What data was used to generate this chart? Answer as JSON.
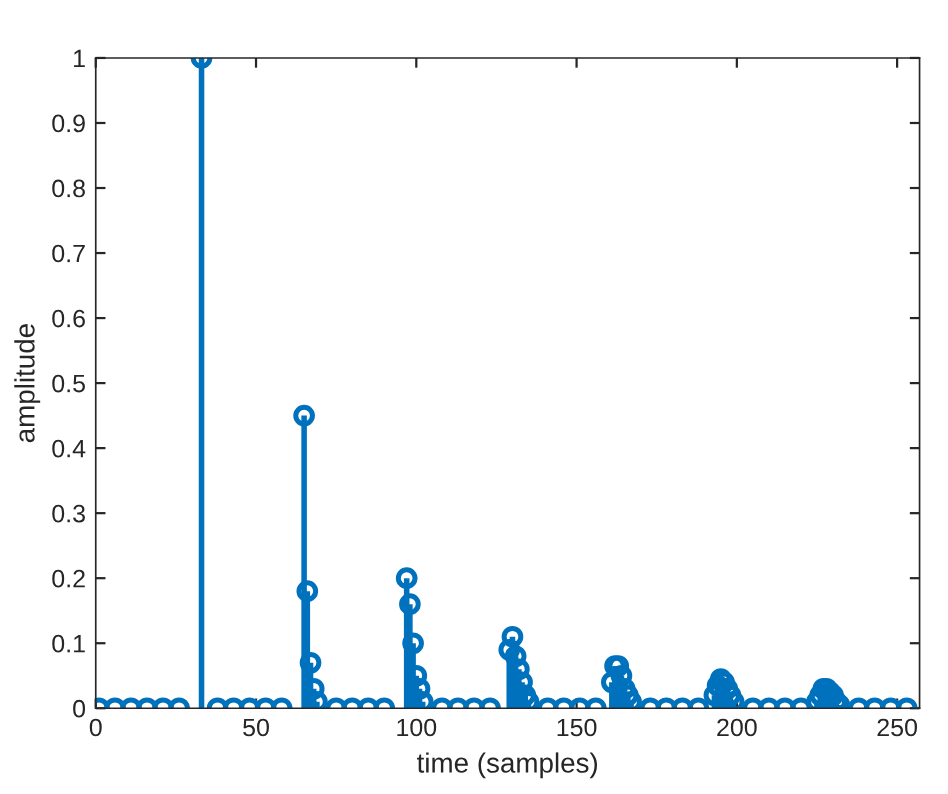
{
  "chart_data": {
    "type": "lollipop",
    "xlabel": "time (samples)",
    "ylabel": "amplitude",
    "color": "#0072bd",
    "marker": "circle",
    "x": [
      1,
      6,
      11,
      16,
      21,
      26,
      33,
      38,
      43,
      48,
      53,
      58,
      65,
      66,
      67,
      68,
      69,
      75,
      80,
      85,
      90,
      97,
      98,
      99,
      100,
      101,
      102,
      108,
      113,
      118,
      123,
      129,
      130,
      131,
      132,
      133,
      134,
      135,
      141,
      146,
      151,
      156,
      161,
      162,
      163,
      164,
      165,
      166,
      167,
      173,
      178,
      183,
      188,
      193,
      194,
      195,
      196,
      197,
      198,
      199,
      205,
      210,
      215,
      220,
      225,
      226,
      227,
      228,
      229,
      230,
      231,
      232,
      238,
      243,
      248,
      253
    ],
    "values": [
      0,
      0,
      0,
      0,
      0,
      0,
      1,
      0,
      0,
      0,
      0,
      0,
      0.45,
      0.18,
      0.07,
      0.03,
      0.01,
      0,
      0,
      0,
      0,
      0.2,
      0.16,
      0.1,
      0.05,
      0.03,
      0.01,
      0,
      0,
      0,
      0,
      0.09,
      0.11,
      0.08,
      0.06,
      0.04,
      0.02,
      0.01,
      0,
      0,
      0,
      0,
      0.04,
      0.065,
      0.065,
      0.05,
      0.03,
      0.02,
      0.01,
      0,
      0,
      0,
      0,
      0.02,
      0.035,
      0.045,
      0.04,
      0.03,
      0.02,
      0.01,
      0,
      0,
      0,
      0,
      0.01,
      0.02,
      0.03,
      0.03,
      0.025,
      0.02,
      0.01,
      0.005,
      0,
      0,
      0,
      0
    ],
    "xlim": [
      0,
      257
    ],
    "xticks": [
      0,
      50,
      100,
      150,
      200,
      250
    ],
    "ylim": [
      0,
      1
    ],
    "yticks": [
      0,
      0.1,
      0.2,
      0.3,
      0.4,
      0.5,
      0.6,
      0.7,
      0.8,
      0.9,
      1
    ]
  }
}
